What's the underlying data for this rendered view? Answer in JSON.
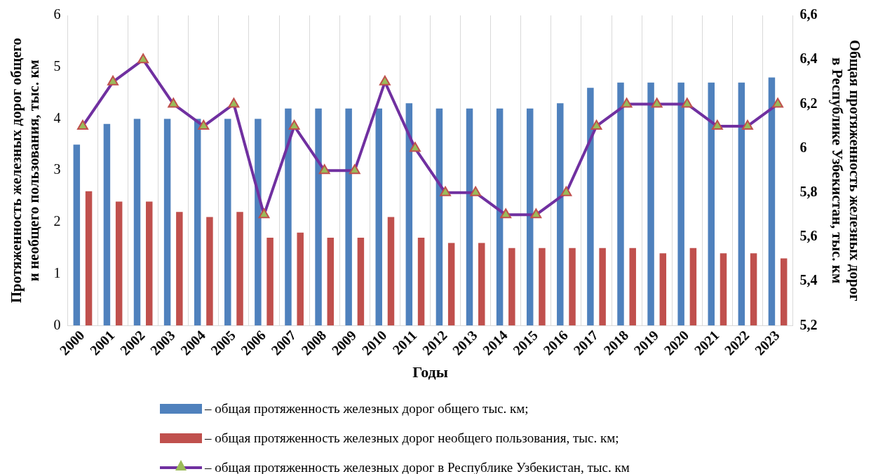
{
  "chart_data": {
    "type": "bar",
    "xlabel": "Годы",
    "ylabel": "Протяженность железных дорог общего\nи необщего пользования, тыс. км",
    "y2label": "Общая протяженность железных дорог\nв Республике Узбекистан, тыс. км",
    "categories": [
      "2000",
      "2001",
      "2002",
      "2003",
      "2004",
      "2005",
      "2006",
      "2007",
      "2008",
      "2009",
      "2010",
      "2011",
      "2012",
      "2013",
      "2014",
      "2015",
      "2016",
      "2017",
      "2018",
      "2019",
      "2020",
      "2021",
      "2022",
      "2023"
    ],
    "series": [
      {
        "name": "– общая  протяженность железных дорог общего  тыс. км;",
        "color": "#4f81bd",
        "values": [
          3.5,
          3.9,
          4.0,
          4.0,
          4.0,
          4.0,
          4.0,
          4.2,
          4.2,
          4.2,
          4.2,
          4.3,
          4.2,
          4.2,
          4.2,
          4.2,
          4.3,
          4.6,
          4.7,
          4.7,
          4.7,
          4.7,
          4.7,
          4.8
        ]
      },
      {
        "name": "– общая  протяженность железных дорог необщего пользования, тыс. км;",
        "color": "#c0504d",
        "values": [
          2.6,
          2.4,
          2.4,
          2.2,
          2.1,
          2.2,
          1.7,
          1.8,
          1.7,
          1.7,
          2.1,
          1.7,
          1.6,
          1.6,
          1.5,
          1.5,
          1.5,
          1.5,
          1.5,
          1.4,
          1.5,
          1.4,
          1.4,
          1.3
        ]
      },
      {
        "name": "– общая  протяженность железных дорог в Республике Узбекистан, тыс. км",
        "type": "line",
        "axis": "y2",
        "color": "#7030a0",
        "values": [
          6.1,
          6.3,
          6.4,
          6.2,
          6.1,
          6.2,
          5.7,
          6.1,
          5.9,
          5.9,
          6.3,
          6.0,
          5.8,
          5.8,
          5.7,
          5.7,
          5.8,
          6.1,
          6.2,
          6.2,
          6.2,
          6.1,
          6.1,
          6.2
        ]
      }
    ],
    "ylim": [
      0,
      6
    ],
    "yticks": [
      0,
      1,
      2,
      3,
      4,
      5,
      6
    ],
    "y2lim": [
      5.2,
      6.6
    ],
    "y2ticks": [
      {
        "value": 5.2,
        "label": "5,2"
      },
      {
        "value": 5.4,
        "label": "5,4"
      },
      {
        "value": 5.6,
        "label": "5,6"
      },
      {
        "value": 5.8,
        "label": "5,8"
      },
      6,
      {
        "value": 6.2,
        "label": "6,2"
      },
      {
        "value": 6.4,
        "label": "6,4"
      },
      {
        "value": 6.6,
        "label": "6,6"
      }
    ],
    "grid": "x",
    "legend": "bottom",
    "marker": "triangle",
    "line_style": "solid"
  }
}
